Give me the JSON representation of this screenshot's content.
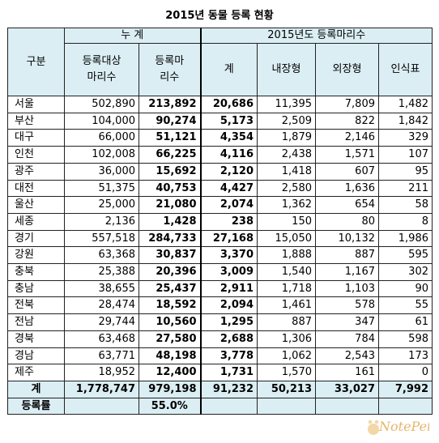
{
  "title": "2015년 동물 등록 현황",
  "headers": {
    "category": "구분",
    "cumulative": "누 계",
    "year_group": "2015년도 등록마리수",
    "target": [
      "등록대상",
      "마리수"
    ],
    "registered": [
      "등록마",
      "리수"
    ],
    "total": "계",
    "internal_chip": "내장형",
    "external_chip": "외장형",
    "id_tag": "인식표"
  },
  "rows": [
    {
      "region": "서울",
      "target": "502,890",
      "registered": "213,892",
      "total": "20,686",
      "internal": "11,395",
      "external": "7,809",
      "tag": "1,482"
    },
    {
      "region": "부산",
      "target": "104,000",
      "registered": "90,274",
      "total": "5,173",
      "internal": "2,509",
      "external": "822",
      "tag": "1,842"
    },
    {
      "region": "대구",
      "target": "66,000",
      "registered": "51,121",
      "total": "4,354",
      "internal": "1,879",
      "external": "2,146",
      "tag": "329"
    },
    {
      "region": "인천",
      "target": "102,008",
      "registered": "66,225",
      "total": "4,116",
      "internal": "2,438",
      "external": "1,571",
      "tag": "107"
    },
    {
      "region": "광주",
      "target": "36,000",
      "registered": "15,692",
      "total": "2,120",
      "internal": "1,418",
      "external": "607",
      "tag": "95"
    },
    {
      "region": "대전",
      "target": "51,375",
      "registered": "40,753",
      "total": "4,427",
      "internal": "2,580",
      "external": "1,636",
      "tag": "211"
    },
    {
      "region": "울산",
      "target": "25,000",
      "registered": "21,080",
      "total": "2,074",
      "internal": "1,362",
      "external": "654",
      "tag": "58"
    },
    {
      "region": "세종",
      "target": "2,136",
      "registered": "1,428",
      "total": "238",
      "internal": "150",
      "external": "80",
      "tag": "8"
    },
    {
      "region": "경기",
      "target": "557,518",
      "registered": "284,733",
      "total": "27,168",
      "internal": "15,050",
      "external": "10,132",
      "tag": "1,986"
    },
    {
      "region": "강원",
      "target": "63,368",
      "registered": "30,837",
      "total": "3,370",
      "internal": "1,888",
      "external": "887",
      "tag": "595"
    },
    {
      "region": "충북",
      "target": "25,388",
      "registered": "20,396",
      "total": "3,009",
      "internal": "1,540",
      "external": "1,167",
      "tag": "302"
    },
    {
      "region": "충남",
      "target": "38,655",
      "registered": "25,437",
      "total": "2,911",
      "internal": "1,718",
      "external": "1,103",
      "tag": "90"
    },
    {
      "region": "전북",
      "target": "28,474",
      "registered": "18,592",
      "total": "2,094",
      "internal": "1,461",
      "external": "578",
      "tag": "55"
    },
    {
      "region": "전남",
      "target": "29,744",
      "registered": "10,560",
      "total": "1,295",
      "internal": "887",
      "external": "347",
      "tag": "61"
    },
    {
      "region": "경북",
      "target": "63,468",
      "registered": "27,580",
      "total": "2,688",
      "internal": "1,306",
      "external": "784",
      "tag": "598"
    },
    {
      "region": "경남",
      "target": "63,771",
      "registered": "48,198",
      "total": "3,778",
      "internal": "1,062",
      "external": "2,543",
      "tag": "173"
    },
    {
      "region": "제주",
      "target": "18,952",
      "registered": "12,400",
      "total": "1,731",
      "internal": "1,570",
      "external": "161",
      "tag": "0"
    }
  ],
  "total_row": {
    "label": "계",
    "target": "1,778,747",
    "registered": "979,198",
    "total": "91,232",
    "internal": "50,213",
    "external": "33,027",
    "tag": "7,992"
  },
  "rate_row": {
    "label": "등록률",
    "value": "55.0%"
  },
  "watermark": {
    "text": "NotePet"
  },
  "colors": {
    "header_bg": "#dbeef4",
    "border": "#222222",
    "watermark": "#e8b46c"
  }
}
